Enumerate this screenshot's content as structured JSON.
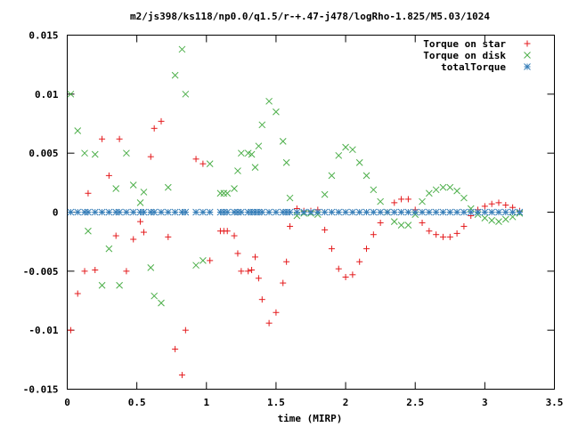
{
  "chart_data": {
    "type": "scatter",
    "title": "m2/js398/ks118/np0.0/q1.5/r-+.47-j478/logRho-1.825/M5.03/1024",
    "xlabel": "time (MIRP)",
    "ylabel": "",
    "xlim": [
      0,
      3.5
    ],
    "ylim": [
      -0.015,
      0.015
    ],
    "x_ticks": [
      "0",
      "0.5",
      "1",
      "1.5",
      "2",
      "2.5",
      "3",
      "3.5"
    ],
    "y_ticks": [
      "0.015",
      "0.01",
      "0.005",
      "0",
      "-0.005",
      "-0.01",
      "-0.015"
    ],
    "legend_position": "top-right",
    "grid": false,
    "series": [
      {
        "name": "Torque on star",
        "marker": "plus",
        "color": "#e41a1c",
        "x": [
          0.025,
          0.075,
          0.125,
          0.15,
          0.2,
          0.25,
          0.3,
          0.35,
          0.375,
          0.425,
          0.475,
          0.525,
          0.55,
          0.6,
          0.625,
          0.675,
          0.725,
          0.775,
          0.825,
          0.85,
          0.925,
          0.975,
          1.025,
          1.1,
          1.125,
          1.15,
          1.2,
          1.225,
          1.25,
          1.3,
          1.325,
          1.35,
          1.375,
          1.4,
          1.45,
          1.5,
          1.55,
          1.575,
          1.6,
          1.65,
          1.7,
          1.75,
          1.8,
          1.85,
          1.9,
          1.95,
          2.0,
          2.05,
          2.1,
          2.15,
          2.2,
          2.25,
          2.3,
          2.35,
          2.4,
          2.45,
          2.5,
          2.55,
          2.6,
          2.65,
          2.7,
          2.75,
          2.8,
          2.85,
          2.9,
          2.95,
          3.0,
          3.05,
          3.1,
          3.15,
          3.2,
          3.25
        ],
        "y": [
          -0.01,
          -0.0069,
          -0.005,
          0.0016,
          -0.0049,
          0.0062,
          0.0031,
          -0.002,
          0.0062,
          -0.005,
          -0.0023,
          -0.0008,
          -0.0017,
          0.0047,
          0.0071,
          0.0077,
          -0.0021,
          -0.0116,
          -0.0138,
          -0.01,
          0.0045,
          0.0041,
          -0.0041,
          -0.0016,
          -0.0016,
          -0.0016,
          -0.002,
          -0.0035,
          -0.005,
          -0.005,
          -0.0049,
          -0.0038,
          -0.0056,
          -0.0074,
          -0.0094,
          -0.0085,
          -0.006,
          -0.0042,
          -0.0012,
          0.0003,
          0.0001,
          0.0001,
          0.0002,
          -0.0015,
          -0.0031,
          -0.0048,
          -0.0055,
          -0.0053,
          -0.0042,
          -0.0031,
          -0.0019,
          -0.0009,
          0.0,
          0.0008,
          0.0011,
          0.0011,
          0.0002,
          -0.0009,
          -0.0016,
          -0.0019,
          -0.0021,
          -0.0021,
          -0.0018,
          -0.0012,
          -0.0003,
          0.0002,
          0.0005,
          0.0007,
          0.0008,
          0.0006,
          0.0004,
          0.0001
        ]
      },
      {
        "name": "Torque on disk",
        "marker": "cross",
        "color": "#4daf4a",
        "x": [
          0.025,
          0.075,
          0.125,
          0.15,
          0.2,
          0.25,
          0.3,
          0.35,
          0.375,
          0.425,
          0.475,
          0.525,
          0.55,
          0.6,
          0.625,
          0.675,
          0.725,
          0.775,
          0.825,
          0.85,
          0.925,
          0.975,
          1.025,
          1.1,
          1.125,
          1.15,
          1.2,
          1.225,
          1.25,
          1.3,
          1.325,
          1.35,
          1.375,
          1.4,
          1.45,
          1.5,
          1.55,
          1.575,
          1.6,
          1.65,
          1.7,
          1.75,
          1.8,
          1.85,
          1.9,
          1.95,
          2.0,
          2.05,
          2.1,
          2.15,
          2.2,
          2.25,
          2.3,
          2.35,
          2.4,
          2.45,
          2.5,
          2.55,
          2.6,
          2.65,
          2.7,
          2.75,
          2.8,
          2.85,
          2.9,
          2.95,
          3.0,
          3.05,
          3.1,
          3.15,
          3.2,
          3.25
        ],
        "y": [
          0.01,
          0.0069,
          0.005,
          -0.0016,
          0.0049,
          -0.0062,
          -0.0031,
          0.002,
          -0.0062,
          0.005,
          0.0023,
          0.0008,
          0.0017,
          -0.0047,
          -0.0071,
          -0.0077,
          0.0021,
          0.0116,
          0.0138,
          0.01,
          -0.0045,
          -0.0041,
          0.0041,
          0.0016,
          0.0016,
          0.0016,
          0.002,
          0.0035,
          0.005,
          0.005,
          0.0049,
          0.0038,
          0.0056,
          0.0074,
          0.0094,
          0.0085,
          0.006,
          0.0042,
          0.0012,
          -0.0003,
          -0.0001,
          -0.0001,
          -0.0002,
          0.0015,
          0.0031,
          0.0048,
          0.0055,
          0.0053,
          0.0042,
          0.0031,
          0.0019,
          0.0009,
          0.0,
          -0.0008,
          -0.0011,
          -0.0011,
          -0.0002,
          0.0009,
          0.0016,
          0.0019,
          0.0021,
          0.0021,
          0.0018,
          0.0012,
          0.0003,
          -0.0002,
          -0.0005,
          -0.0007,
          -0.0008,
          -0.0006,
          -0.0004,
          -0.0001
        ]
      },
      {
        "name": "totalTorque",
        "marker": "star",
        "color": "#377eb8",
        "x": [
          0.025,
          0.075,
          0.125,
          0.15,
          0.2,
          0.25,
          0.3,
          0.35,
          0.375,
          0.425,
          0.475,
          0.525,
          0.55,
          0.6,
          0.625,
          0.675,
          0.725,
          0.775,
          0.825,
          0.85,
          0.925,
          0.975,
          1.025,
          1.1,
          1.125,
          1.15,
          1.2,
          1.225,
          1.25,
          1.3,
          1.325,
          1.35,
          1.375,
          1.4,
          1.45,
          1.5,
          1.55,
          1.575,
          1.6,
          1.65,
          1.7,
          1.75,
          1.8,
          1.85,
          1.9,
          1.95,
          2.0,
          2.05,
          2.1,
          2.15,
          2.2,
          2.25,
          2.3,
          2.35,
          2.4,
          2.45,
          2.5,
          2.55,
          2.6,
          2.65,
          2.7,
          2.75,
          2.8,
          2.85,
          2.9,
          2.95,
          3.0,
          3.05,
          3.1,
          3.15,
          3.2,
          3.25
        ],
        "y": [
          0.0,
          0.0,
          0.0,
          0.0,
          0.0,
          0.0,
          0.0,
          0.0,
          0.0,
          0.0,
          0.0,
          0.0,
          0.0,
          0.0,
          0.0,
          0.0,
          0.0,
          0.0,
          0.0,
          0.0,
          0.0,
          0.0,
          0.0,
          0.0,
          0.0,
          0.0,
          0.0,
          0.0,
          0.0,
          0.0,
          0.0,
          0.0,
          0.0,
          0.0,
          0.0,
          0.0,
          0.0,
          0.0,
          0.0,
          0.0,
          0.0,
          0.0,
          0.0,
          0.0,
          0.0,
          0.0,
          0.0,
          0.0,
          0.0,
          0.0,
          0.0,
          0.0,
          0.0,
          0.0,
          0.0,
          0.0,
          0.0,
          0.0,
          0.0,
          0.0,
          0.0,
          0.0,
          0.0,
          0.0,
          0.0,
          0.0,
          0.0,
          0.0,
          0.0,
          0.0,
          0.0,
          0.0
        ]
      }
    ]
  }
}
